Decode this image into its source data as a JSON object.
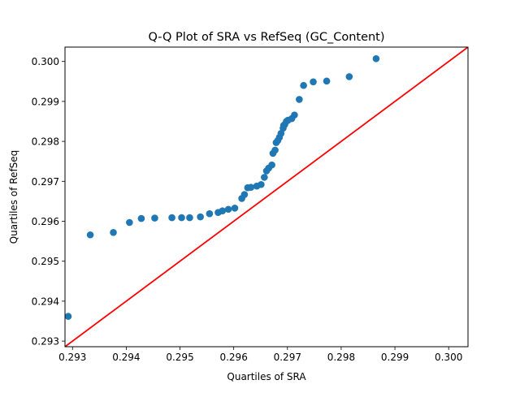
{
  "chart_data": {
    "type": "scatter",
    "title": "Q-Q Plot of SRA vs RefSeq (GC_Content)",
    "xlabel": "Quartiles of SRA",
    "ylabel": "Quartiles of RefSeq",
    "xlim": [
      0.29286,
      0.30036
    ],
    "ylim": [
      0.29286,
      0.30036
    ],
    "xticks": [
      0.293,
      0.294,
      0.295,
      0.296,
      0.297,
      0.298,
      0.299,
      0.3
    ],
    "xtick_labels": [
      "0.293",
      "0.294",
      "0.295",
      "0.296",
      "0.297",
      "0.298",
      "0.299",
      "0.300"
    ],
    "yticks": [
      0.293,
      0.294,
      0.295,
      0.296,
      0.297,
      0.298,
      0.299,
      0.3
    ],
    "ytick_labels": [
      "0.293",
      "0.294",
      "0.295",
      "0.296",
      "0.297",
      "0.298",
      "0.299",
      "0.300"
    ],
    "grid": false,
    "legend": "none",
    "colors": {
      "points": "#1f77b4",
      "reference_line": "#ff0000"
    },
    "reference_line": {
      "type": "y=x"
    },
    "points": {
      "x": [
        0.29292,
        0.29333,
        0.29376,
        0.29406,
        0.29428,
        0.29453,
        0.29485,
        0.29503,
        0.29518,
        0.29538,
        0.29555,
        0.29571,
        0.29579,
        0.2959,
        0.29602,
        0.29615,
        0.2962,
        0.29626,
        0.29632,
        0.29643,
        0.29651,
        0.29657,
        0.29661,
        0.29665,
        0.29671,
        0.29673,
        0.29677,
        0.29679,
        0.29682,
        0.29685,
        0.29688,
        0.29692,
        0.29693,
        0.29695,
        0.29698,
        0.29701,
        0.29708,
        0.29713,
        0.29722,
        0.2973,
        0.29748,
        0.29773,
        0.29815,
        0.29865
      ],
      "y": [
        0.29362,
        0.29566,
        0.29572,
        0.29597,
        0.29607,
        0.29608,
        0.29609,
        0.29609,
        0.29609,
        0.29611,
        0.29619,
        0.29622,
        0.29626,
        0.2963,
        0.29633,
        0.29657,
        0.29667,
        0.29684,
        0.29685,
        0.29688,
        0.29692,
        0.2971,
        0.29726,
        0.29733,
        0.29741,
        0.2977,
        0.29778,
        0.29797,
        0.29802,
        0.2981,
        0.2982,
        0.29833,
        0.2984,
        0.29842,
        0.2985,
        0.29853,
        0.29857,
        0.29866,
        0.29905,
        0.2994,
        0.29949,
        0.29951,
        0.29962,
        0.30007
      ]
    }
  }
}
